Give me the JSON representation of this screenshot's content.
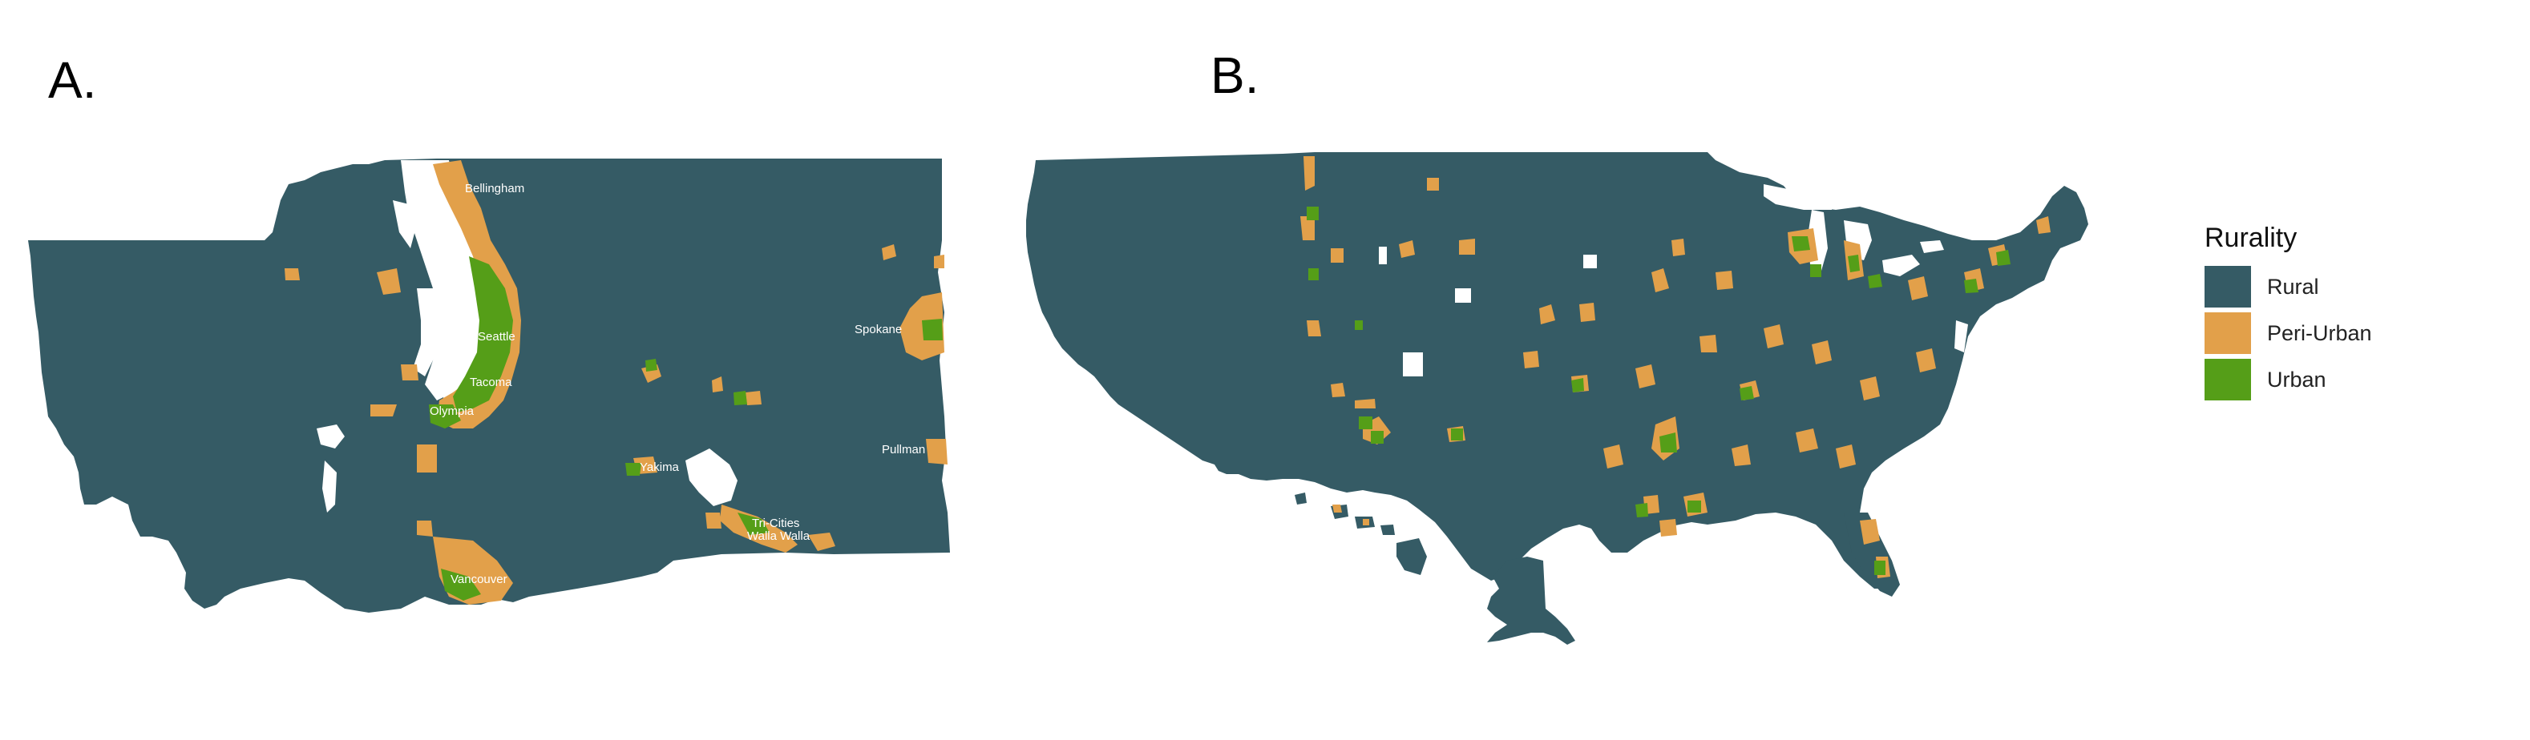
{
  "panels": {
    "a_label": "A.",
    "b_label": "B."
  },
  "colors": {
    "rural": "#355b65",
    "peri_urban": "#e2a04a",
    "urban": "#559e18",
    "water": "#ffffff"
  },
  "washington": {
    "cities": [
      "Bellingham",
      "Seattle",
      "Tacoma",
      "Olympia",
      "Spokane",
      "Yakima",
      "Tri-Cities",
      "Walla Walla",
      "Pullman",
      "Vancouver"
    ]
  },
  "legend": {
    "title": "Rurality",
    "items": [
      {
        "label": "Rural",
        "color": "#355b65"
      },
      {
        "label": "Peri-Urban",
        "color": "#e2a04a"
      },
      {
        "label": "Urban",
        "color": "#559e18"
      }
    ]
  }
}
